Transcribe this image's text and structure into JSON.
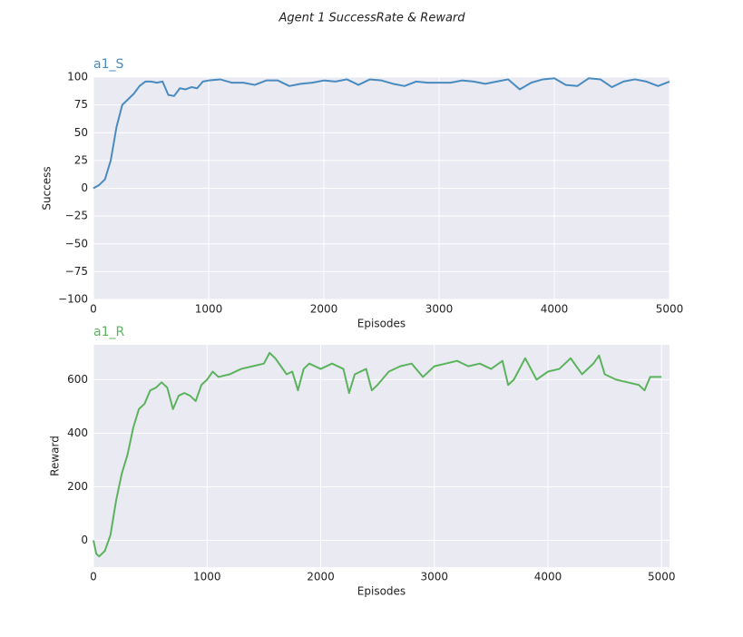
{
  "title": "Agent 1 SuccessRate & Reward",
  "chart_data": [
    {
      "type": "line",
      "title": "a1_S",
      "xlabel": "Episodes",
      "ylabel": "Success",
      "x": [
        0,
        50,
        100,
        150,
        200,
        250,
        300,
        350,
        400,
        450,
        500,
        550,
        600,
        650,
        700,
        750,
        800,
        850,
        900,
        950,
        1000,
        1100,
        1200,
        1300,
        1400,
        1500,
        1600,
        1700,
        1800,
        1900,
        2000,
        2100,
        2200,
        2300,
        2400,
        2500,
        2600,
        2700,
        2800,
        2900,
        3000,
        3100,
        3200,
        3300,
        3400,
        3500,
        3600,
        3700,
        3800,
        3900,
        4000,
        4100,
        4200,
        4300,
        4400,
        4500,
        4600,
        4700,
        4800,
        4900,
        5000
      ],
      "series": [
        {
          "name": "a1_S",
          "color": "#4a8bbf",
          "values": [
            0,
            3,
            8,
            25,
            55,
            75,
            80,
            85,
            92,
            96,
            96,
            95,
            96,
            84,
            83,
            90,
            89,
            91,
            90,
            96,
            97,
            98,
            95,
            95,
            93,
            97,
            97,
            92,
            94,
            95,
            97,
            96,
            98,
            93,
            98,
            97,
            94,
            92,
            96,
            95,
            95,
            95,
            97,
            96,
            94,
            96,
            98,
            89,
            95,
            98,
            99,
            93,
            92,
            99,
            98,
            91,
            96,
            98,
            96,
            92,
            96
          ]
        }
      ],
      "xlim": [
        0,
        5000
      ],
      "ylim": [
        -100,
        100
      ],
      "xticks": [
        0,
        1000,
        2000,
        3000,
        4000,
        5000
      ],
      "yticks": [
        {
          "value": -100,
          "label": "−100"
        },
        {
          "value": -75,
          "label": "−75"
        },
        {
          "value": -50,
          "label": "−50"
        },
        {
          "value": -25,
          "label": "−25"
        },
        0,
        25,
        50,
        75,
        100
      ],
      "grid": true
    },
    {
      "type": "line",
      "title": "a1_R",
      "xlabel": "Episodes",
      "ylabel": "Reward",
      "x": [
        0,
        25,
        50,
        100,
        150,
        200,
        250,
        300,
        350,
        400,
        450,
        500,
        550,
        600,
        650,
        700,
        750,
        800,
        850,
        900,
        950,
        1000,
        1050,
        1100,
        1200,
        1300,
        1400,
        1500,
        1550,
        1600,
        1700,
        1750,
        1800,
        1850,
        1900,
        2000,
        2100,
        2200,
        2250,
        2300,
        2400,
        2450,
        2500,
        2600,
        2700,
        2800,
        2900,
        3000,
        3100,
        3200,
        3300,
        3400,
        3500,
        3600,
        3650,
        3700,
        3800,
        3900,
        4000,
        4100,
        4200,
        4300,
        4400,
        4450,
        4500,
        4600,
        4700,
        4800,
        4850,
        4900,
        5000
      ],
      "series": [
        {
          "name": "a1_R",
          "color": "#5cb35e",
          "values": [
            0,
            -50,
            -60,
            -40,
            20,
            150,
            250,
            320,
            420,
            490,
            510,
            560,
            570,
            590,
            570,
            490,
            540,
            550,
            540,
            520,
            580,
            600,
            630,
            610,
            620,
            640,
            650,
            660,
            700,
            680,
            620,
            630,
            560,
            640,
            660,
            640,
            660,
            640,
            550,
            620,
            640,
            560,
            580,
            630,
            650,
            660,
            610,
            650,
            660,
            670,
            650,
            660,
            640,
            670,
            580,
            600,
            680,
            600,
            630,
            640,
            680,
            620,
            660,
            690,
            620,
            600,
            590,
            580,
            560,
            610,
            610
          ]
        }
      ],
      "xlim": [
        0,
        5070
      ],
      "ylim": [
        -100,
        730
      ],
      "xticks": [
        0,
        1000,
        2000,
        3000,
        4000,
        5000
      ],
      "yticks": [
        0,
        200,
        400,
        600
      ],
      "grid": true
    }
  ]
}
